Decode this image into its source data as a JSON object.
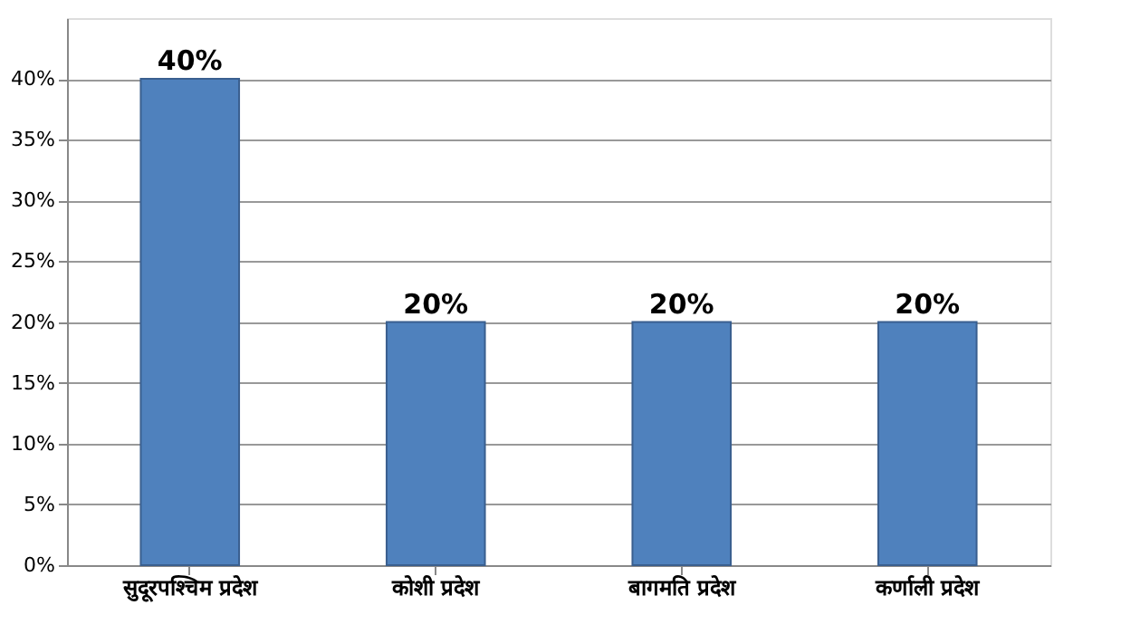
{
  "chart_data": {
    "type": "bar",
    "categories": [
      "सुदूरपश्चिम प्रदेश",
      "कोशी प्रदेश",
      "बागमति प्रदेश",
      "कर्णाली प्रदेश"
    ],
    "values": [
      40,
      20,
      20,
      20
    ],
    "value_labels": [
      "40%",
      "20%",
      "20%",
      "20%"
    ],
    "color": "#4f81bd",
    "ylim": [
      0,
      45
    ],
    "yticks": [
      {
        "value": 0,
        "label": "0%"
      },
      {
        "value": 5,
        "label": "5%"
      },
      {
        "value": 10,
        "label": "10%"
      },
      {
        "value": 15,
        "label": "15%"
      },
      {
        "value": 20,
        "label": "20%"
      },
      {
        "value": 25,
        "label": "25%"
      },
      {
        "value": 30,
        "label": "30%"
      },
      {
        "value": 35,
        "label": "35%"
      },
      {
        "value": 40,
        "label": "40%"
      }
    ],
    "grid": "y"
  }
}
